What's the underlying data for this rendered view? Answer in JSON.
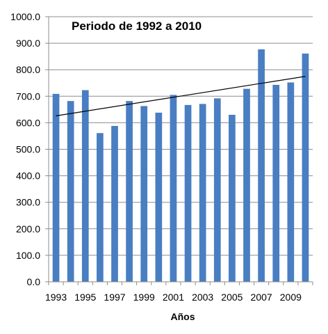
{
  "chart_data": {
    "type": "bar",
    "title": "Periodo de 1992 a  2010",
    "xlabel": "Años",
    "ylabel": "",
    "ylim": [
      0,
      1000
    ],
    "yticks": [
      "0.0",
      "100.0",
      "200.0",
      "300.0",
      "400.0",
      "500.0",
      "600.0",
      "700.0",
      "800.0",
      "900.0",
      "1000.0"
    ],
    "x_tick_labels": [
      "1993",
      "1995",
      "1997",
      "1999",
      "2001",
      "2003",
      "2005",
      "2007",
      "2009"
    ],
    "categories": [
      "1993",
      "1994",
      "1995",
      "1996",
      "1997",
      "1998",
      "1999",
      "2000",
      "2001",
      "2002",
      "2003",
      "2004",
      "2005",
      "2006",
      "2007",
      "2008",
      "2009",
      "2010"
    ],
    "values": [
      709,
      682,
      723,
      561,
      588,
      682,
      663,
      638,
      705,
      667,
      671,
      692,
      630,
      728,
      877,
      743,
      752,
      861
    ],
    "bar_color": "#4a7ec2",
    "trendline": {
      "start": 626,
      "end": 775,
      "color": "#000000"
    },
    "grid": true,
    "legend": "none"
  }
}
